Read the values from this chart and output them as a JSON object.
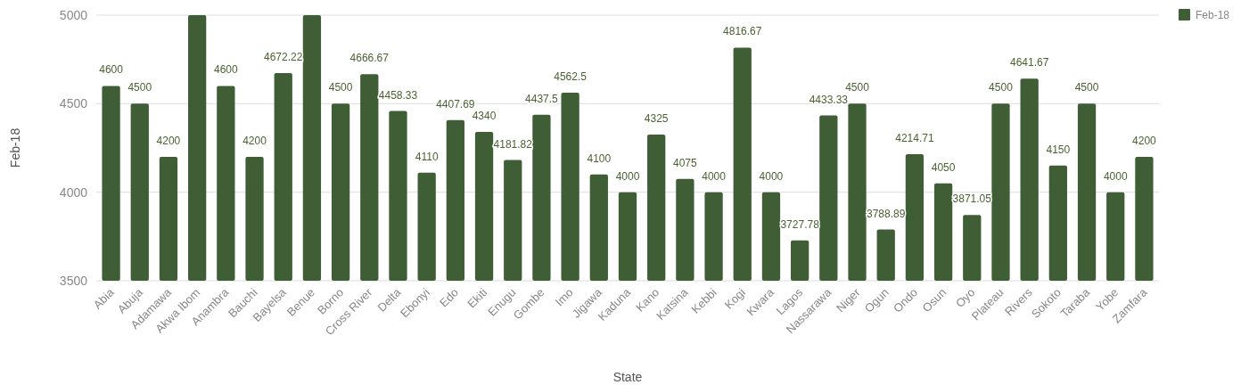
{
  "chart_data": {
    "type": "bar",
    "xlabel": "State",
    "ylabel": "Feb-18",
    "categories": [
      "Abia",
      "Abuja",
      "Adamawa",
      "Akwa Ibom",
      "Anambra",
      "Bauchi",
      "Bayelsa",
      "Benue",
      "Borno",
      "Cross River",
      "Delta",
      "Ebonyi",
      "Edo",
      "Ekiti",
      "Enugu",
      "Gombe",
      "Imo",
      "Jigawa",
      "Kaduna",
      "Kano",
      "Katsina",
      "Kebbi",
      "Kogi",
      "Kwara",
      "Lagos",
      "Nassarawa",
      "Niger",
      "Ogun",
      "Ondo",
      "Osun",
      "Oyo",
      "Plateau",
      "Rivers",
      "Sokoto",
      "Taraba",
      "Yobe",
      "Zamfara"
    ],
    "series": [
      {
        "name": "Feb-18",
        "color": "#3f5e36",
        "values": [
          4600,
          4500,
          4200,
          5000,
          4600,
          4200,
          4672.22,
          5000,
          4500,
          4666.67,
          4458.33,
          4110,
          4407.69,
          4340,
          4181.82,
          4437.5,
          4562.5,
          4100,
          4000,
          4325,
          4075,
          4000,
          4816.67,
          4000,
          3727.78,
          4433.33,
          4500,
          3788.89,
          4214.71,
          4050,
          3871.05,
          4500,
          4641.67,
          4150,
          4500,
          4000,
          4200
        ],
        "value_labels": [
          "4600",
          "4500",
          "4200",
          null,
          "4600",
          "4200",
          "4672.22",
          null,
          "4500",
          "4666.67",
          "4458.33",
          "4110",
          "4407.69",
          "4340",
          "4181.82",
          "4437.5",
          "4562.5",
          "4100",
          "4000",
          "4325",
          "4075",
          "4000",
          "4816.67",
          "4000",
          "3727.78",
          "4433.33",
          "4500",
          "3788.89",
          "4214.71",
          "4050",
          "3871.05",
          "4500",
          "4641.67",
          "4150",
          "4500",
          "4000",
          "4200"
        ]
      }
    ],
    "ylim": [
      3500,
      5000
    ],
    "yticks": [
      3500,
      4000,
      4500,
      5000
    ],
    "grid": "y",
    "legend": "top right"
  }
}
